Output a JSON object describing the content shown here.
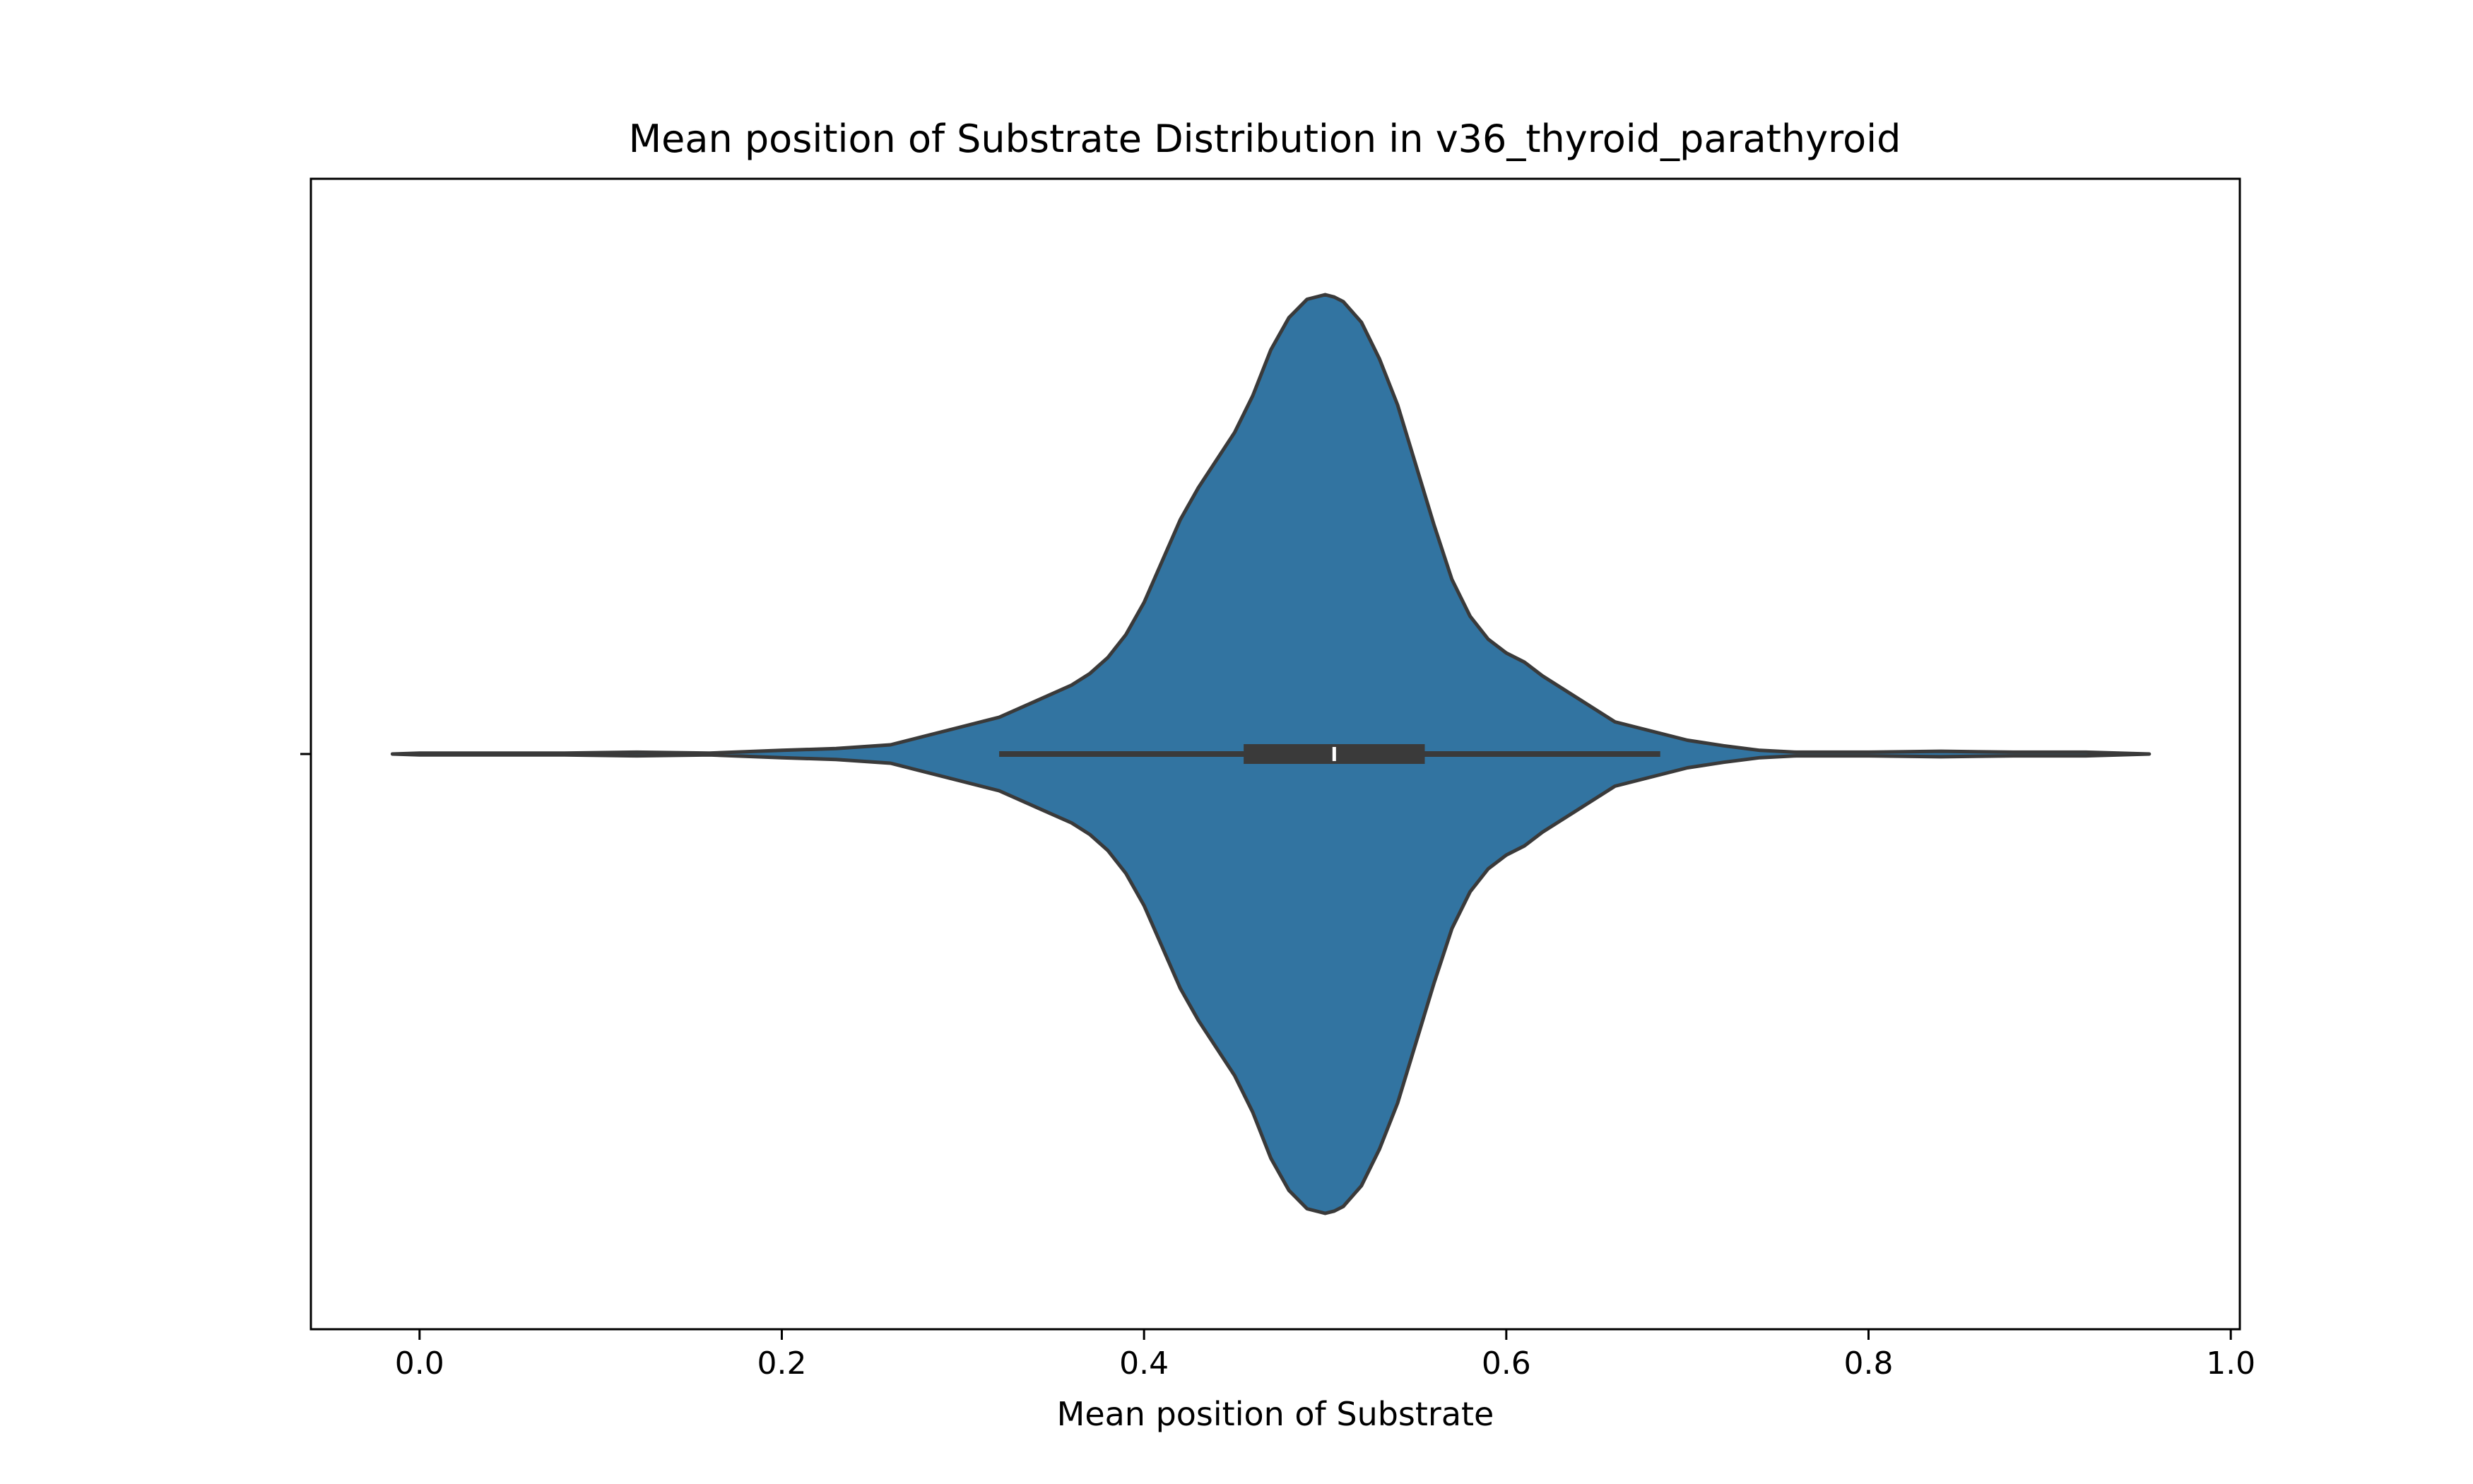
{
  "chart_data": {
    "type": "violin",
    "orientation": "horizontal",
    "title": "Mean position of Substrate Distribution in v36_thyroid_parathyroid",
    "xlabel": "Mean position of Substrate",
    "ylabel": "",
    "xlim": [
      -0.06,
      1.005
    ],
    "x_ticks": [
      0.0,
      0.2,
      0.4,
      0.6,
      0.8,
      1.0
    ],
    "x_tick_labels": [
      "0.0",
      "0.2",
      "0.4",
      "0.6",
      "0.8",
      "1.0"
    ],
    "grid": false,
    "legend": "none",
    "colors": {
      "fill": "#3274a1",
      "outline": "#3a3a3a",
      "box": "#3a3a3a",
      "median": "#ffffff"
    },
    "density_curve": {
      "x": [
        -0.015,
        0.0,
        0.05,
        0.08,
        0.12,
        0.16,
        0.2,
        0.23,
        0.26,
        0.28,
        0.3,
        0.32,
        0.34,
        0.36,
        0.37,
        0.38,
        0.39,
        0.4,
        0.41,
        0.42,
        0.43,
        0.44,
        0.45,
        0.46,
        0.47,
        0.48,
        0.49,
        0.5,
        0.505,
        0.51,
        0.52,
        0.53,
        0.54,
        0.55,
        0.56,
        0.57,
        0.58,
        0.59,
        0.6,
        0.61,
        0.62,
        0.64,
        0.66,
        0.68,
        0.7,
        0.72,
        0.74,
        0.76,
        0.8,
        0.84,
        0.88,
        0.92,
        0.955
      ],
      "density": [
        0.0,
        0.002,
        0.002,
        0.002,
        0.004,
        0.002,
        0.008,
        0.012,
        0.02,
        0.04,
        0.06,
        0.08,
        0.115,
        0.15,
        0.175,
        0.21,
        0.26,
        0.33,
        0.42,
        0.51,
        0.58,
        0.64,
        0.7,
        0.78,
        0.88,
        0.95,
        0.99,
        1.0,
        0.995,
        0.985,
        0.94,
        0.86,
        0.76,
        0.63,
        0.5,
        0.38,
        0.3,
        0.25,
        0.22,
        0.2,
        0.17,
        0.12,
        0.07,
        0.05,
        0.03,
        0.018,
        0.008,
        0.004,
        0.004,
        0.006,
        0.004,
        0.004,
        0.0
      ]
    },
    "box": {
      "whisker_low": 0.32,
      "q1": 0.455,
      "median": 0.505,
      "q3": 0.555,
      "whisker_high": 0.685
    }
  }
}
